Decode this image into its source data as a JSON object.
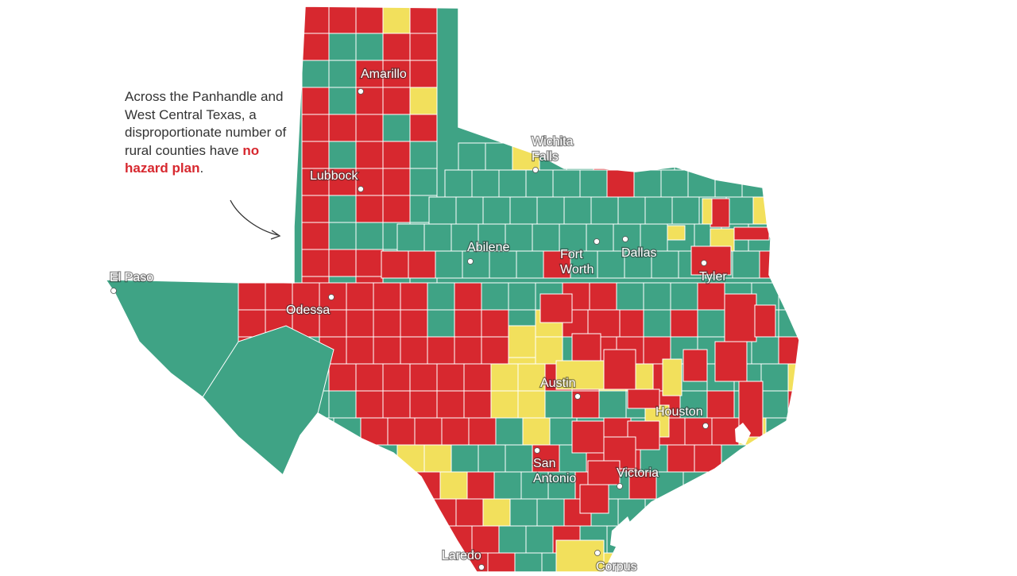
{
  "annotation": {
    "line1": "Across the Panhandle and West Central Texas, a disproportionate number of rural counties have ",
    "highlight": "no hazard plan",
    "end": "."
  },
  "legend_colors": {
    "no_plan": "#d7282f",
    "has_plan": "#3fa385",
    "expired": "#f2e05c"
  },
  "cities": [
    {
      "name": "Amarillo"
    },
    {
      "name": "Lubbock"
    },
    {
      "name": "Wichita Falls"
    },
    {
      "name": "Abilene"
    },
    {
      "name": "Fort Worth"
    },
    {
      "name": "Dallas"
    },
    {
      "name": "Tyler"
    },
    {
      "name": "El Paso"
    },
    {
      "name": "Odessa"
    },
    {
      "name": "Austin"
    },
    {
      "name": "Houston"
    },
    {
      "name": "San Antonio"
    },
    {
      "name": "Victoria"
    },
    {
      "name": "Laredo"
    },
    {
      "name": "Corpus"
    }
  ]
}
